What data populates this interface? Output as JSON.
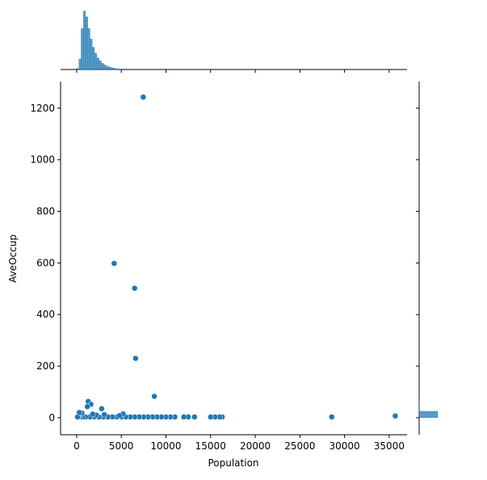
{
  "chart_data": [
    {
      "type": "scatter",
      "x_label": "Population",
      "y_label": "AveOccup",
      "color": "#1f77b4",
      "x": [
        7460,
        4200,
        6500,
        6600,
        8700,
        1300,
        1600,
        1200,
        2800,
        35682,
        28566,
        16300,
        16000,
        15500,
        15000,
        13200,
        12500,
        12000,
        11000,
        10500,
        10000,
        9500,
        9000,
        8500,
        8000,
        7500,
        7000,
        6500,
        6000,
        5500,
        5000,
        4500,
        4000,
        3500,
        3000,
        2500,
        2000,
        1500,
        1000,
        700,
        400,
        200,
        100,
        5200,
        3100,
        2200,
        600,
        1800,
        4800,
        300
      ],
      "y": [
        1243,
        598,
        502,
        230,
        83,
        63,
        52,
        43,
        35,
        7,
        3,
        3,
        3,
        3,
        3,
        3,
        3,
        3,
        3,
        3,
        3,
        3,
        3,
        3,
        3,
        3,
        3,
        3,
        3,
        3,
        3,
        3,
        3,
        3,
        3,
        3,
        3,
        3,
        3,
        3,
        3,
        3,
        3,
        15,
        12,
        10,
        18,
        14,
        8,
        20
      ],
      "xlim": [
        -1800,
        37000
      ],
      "xticks": [
        0,
        5000,
        10000,
        15000,
        20000,
        25000,
        30000,
        35000
      ],
      "ylim": [
        -66,
        1303
      ],
      "yticks": [
        0,
        200,
        400,
        600,
        800,
        1000,
        1200
      ]
    },
    {
      "type": "histogram",
      "orientation": "vertical",
      "color": "#1f77b4",
      "bins": [
        0,
        250,
        500,
        750,
        1000,
        1250,
        1500,
        1750,
        2000,
        2250,
        2500,
        2750,
        3000,
        3250,
        3500,
        3750,
        4000,
        4250,
        4500,
        4750,
        5000
      ],
      "counts": [
        20,
        180,
        700,
        1000,
        900,
        700,
        520,
        380,
        280,
        200,
        150,
        110,
        80,
        60,
        45,
        35,
        25,
        18,
        12,
        8
      ],
      "xlim": [
        -1800,
        37000
      ],
      "xticks": [
        0,
        5000,
        10000,
        15000,
        20000,
        25000,
        30000,
        35000
      ],
      "ylim": [
        0,
        1050
      ]
    },
    {
      "type": "histogram",
      "orientation": "horizontal",
      "color": "#1f77b4",
      "bins": [
        0,
        25,
        50,
        75
      ],
      "counts": [
        20600,
        10,
        3
      ],
      "ylim": [
        -66,
        1303
      ],
      "yticks": [
        0,
        200,
        400,
        600,
        800,
        1000,
        1200
      ],
      "xlim": [
        0,
        68000
      ]
    }
  ]
}
